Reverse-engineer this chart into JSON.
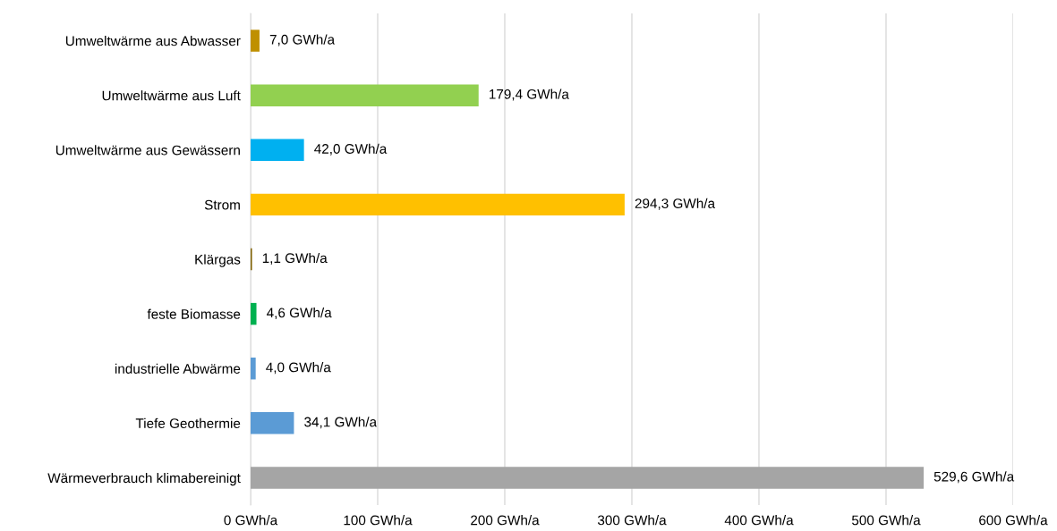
{
  "chart_data": {
    "type": "bar",
    "orientation": "horizontal",
    "categories": [
      "Umweltwärme aus Abwasser",
      "Umweltwärme aus Luft",
      "Umweltwärme aus Gewässern",
      "Strom",
      "Klärgas",
      "feste Biomasse",
      "industrielle Abwärme",
      "Tiefe Geothermie",
      "Wärmeverbrauch klimabereinigt"
    ],
    "values": [
      7.0,
      179.4,
      42.0,
      294.3,
      1.1,
      4.6,
      4.0,
      34.1,
      529.6
    ],
    "colors": [
      "#bf9000",
      "#92d050",
      "#00b0f0",
      "#ffc000",
      "#7f6000",
      "#00b050",
      "#5b9bd5",
      "#5b9bd5",
      "#a5a5a5"
    ],
    "value_labels": [
      "7,0 GWh/a",
      "179,4 GWh/a",
      "42,0 GWh/a",
      "294,3 GWh/a",
      "1,1 GWh/a",
      "4,6 GWh/a",
      "4,0 GWh/a",
      "34,1 GWh/a",
      "529,6 GWh/a"
    ],
    "xlim": [
      0,
      600
    ],
    "xticks": [
      {
        "value": 0,
        "label": "0 GWh/a"
      },
      {
        "value": 100,
        "label": "100 GWh/a"
      },
      {
        "value": 200,
        "label": "200 GWh/a"
      },
      {
        "value": 300,
        "label": "300 GWh/a"
      },
      {
        "value": 400,
        "label": "400 GWh/a"
      },
      {
        "value": 500,
        "label": "500 GWh/a"
      },
      {
        "value": 600,
        "label": "600 GWh/a"
      }
    ],
    "grid": "x",
    "legend": false
  }
}
